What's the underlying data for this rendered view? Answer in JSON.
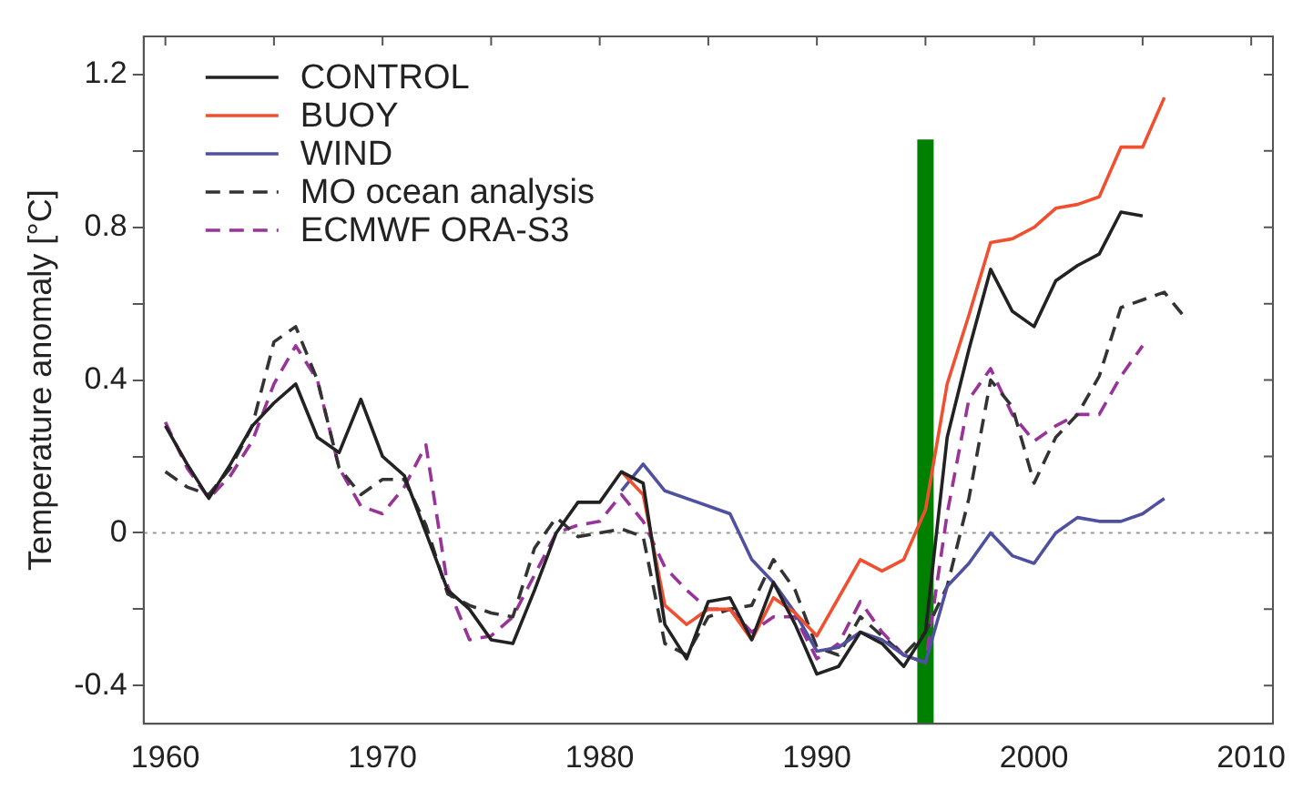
{
  "chart_data": {
    "type": "line",
    "ylabel": "Temperature anomaly [°C]",
    "xlim": [
      1959,
      2011
    ],
    "ylim": [
      -0.5,
      1.3
    ],
    "xticks": [
      1960,
      {
        "value": 1965,
        "label": null
      },
      1970,
      {
        "value": 1975,
        "label": null
      },
      1980,
      {
        "value": 1985,
        "label": null
      },
      1990,
      {
        "value": 1995,
        "label": null
      },
      2000,
      {
        "value": 2005,
        "label": null
      },
      2010
    ],
    "yticks": [
      -0.4,
      {
        "value": -0.2,
        "label": null
      },
      0,
      {
        "value": 0.2,
        "label": null
      },
      0.4,
      {
        "value": 0.6,
        "label": null
      },
      0.8,
      {
        "value": 1.0,
        "label": null
      },
      1.2
    ],
    "grid": false,
    "legend": "top left",
    "marker": "none",
    "ref_lines": [
      {
        "axis": "y",
        "value": 0,
        "color": "#999999",
        "line_style": "dotted"
      }
    ],
    "series": [
      {
        "name": "CONTROL",
        "color": "#222222",
        "line_style": "solid",
        "x": [
          1960,
          1961,
          1962,
          1963,
          1964,
          1965,
          1966,
          1967,
          1968,
          1969,
          1970,
          1971,
          1972,
          1973,
          1974,
          1975,
          1976,
          1977,
          1978,
          1979,
          1980,
          1981,
          1982,
          1983,
          1984,
          1985,
          1986,
          1987,
          1988,
          1989,
          1990,
          1991,
          1992,
          1993,
          1994,
          1995,
          1996,
          1997,
          1998,
          1999,
          2000,
          2001,
          2002,
          2003,
          2004,
          2005
        ],
        "values": [
          0.28,
          0.18,
          0.09,
          0.18,
          0.28,
          0.34,
          0.39,
          0.25,
          0.21,
          0.35,
          0.2,
          0.15,
          0.0,
          -0.15,
          -0.2,
          -0.28,
          -0.29,
          -0.15,
          0.0,
          0.08,
          0.08,
          0.16,
          0.13,
          -0.24,
          -0.33,
          -0.18,
          -0.17,
          -0.28,
          -0.13,
          -0.24,
          -0.37,
          -0.35,
          -0.26,
          -0.29,
          -0.35,
          -0.26,
          0.25,
          0.48,
          0.69,
          0.58,
          0.54,
          0.66,
          0.7,
          0.73,
          0.84,
          0.83
        ]
      },
      {
        "name": "BUOY",
        "color": "#f05030",
        "line_style": "solid",
        "x": [
          1981,
          1982,
          1983,
          1984,
          1985,
          1986,
          1987,
          1988,
          1989,
          1990,
          1991,
          1992,
          1993,
          1994,
          1995,
          1996,
          1997,
          1998,
          1999,
          2000,
          2001,
          2002,
          2003,
          2004,
          2005,
          2006
        ],
        "values": [
          0.16,
          0.1,
          -0.19,
          -0.24,
          -0.2,
          -0.2,
          -0.28,
          -0.17,
          -0.21,
          -0.27,
          -0.17,
          -0.07,
          -0.1,
          -0.07,
          0.06,
          0.39,
          0.57,
          0.76,
          0.77,
          0.8,
          0.85,
          0.86,
          0.88,
          1.01,
          1.01,
          1.14
        ]
      },
      {
        "name": "WIND",
        "color": "#5050a0",
        "line_style": "solid",
        "x": [
          1981,
          1982,
          1983,
          1986,
          1987,
          1988,
          1989,
          1990,
          1991,
          1992,
          1993,
          1994,
          1995,
          1996,
          1997,
          1998,
          1999,
          2000,
          2001,
          2002,
          2003,
          2004,
          2005,
          2006
        ],
        "values": [
          0.11,
          0.18,
          0.11,
          0.05,
          -0.07,
          -0.13,
          -0.21,
          -0.31,
          -0.3,
          -0.26,
          -0.28,
          -0.32,
          -0.34,
          -0.14,
          -0.08,
          0.0,
          -0.06,
          -0.08,
          0.0,
          0.04,
          0.03,
          0.03,
          0.05,
          0.09
        ]
      },
      {
        "name": "MO ocean analysis",
        "color": "#333333",
        "line_style": "dashed",
        "x": [
          1960,
          1961,
          1962,
          1963,
          1964,
          1965,
          1966,
          1967,
          1968,
          1969,
          1970,
          1971,
          1972,
          1973,
          1974,
          1975,
          1976,
          1977,
          1978,
          1979,
          1980,
          1981,
          1982,
          1983,
          1984,
          1985,
          1986,
          1987,
          1988,
          1989,
          1990,
          1991,
          1992,
          1993,
          1994,
          1995,
          1996,
          1997,
          1998,
          1999,
          2000,
          2001,
          2002,
          2003,
          2004,
          2005,
          2006,
          2007
        ],
        "values": [
          0.16,
          0.12,
          0.1,
          0.17,
          0.28,
          0.5,
          0.54,
          0.4,
          0.17,
          0.1,
          0.14,
          0.14,
          0.02,
          -0.16,
          -0.19,
          -0.21,
          -0.22,
          -0.04,
          0.04,
          -0.01,
          0.0,
          0.01,
          -0.01,
          -0.29,
          -0.32,
          -0.22,
          -0.2,
          -0.19,
          -0.07,
          -0.15,
          -0.3,
          -0.32,
          -0.22,
          -0.27,
          -0.32,
          -0.26,
          -0.14,
          0.09,
          0.4,
          0.33,
          0.13,
          0.25,
          0.31,
          0.41,
          0.59,
          0.61,
          0.63,
          0.56
        ]
      },
      {
        "name": "ECMWF ORA-S3",
        "color": "#993399",
        "line_style": "dashed",
        "x": [
          1960,
          1961,
          1962,
          1963,
          1964,
          1965,
          1966,
          1967,
          1968,
          1969,
          1970,
          1971,
          1972,
          1973,
          1974,
          1975,
          1976,
          1977,
          1978,
          1979,
          1980,
          1981,
          1982,
          1983,
          1984,
          1985,
          1986,
          1987,
          1988,
          1989,
          1990,
          1991,
          1992,
          1993,
          1994,
          1995,
          1996,
          1997,
          1998,
          1999,
          2000,
          2001,
          2002,
          2003,
          2004,
          2005
        ],
        "values": [
          0.29,
          0.17,
          0.09,
          0.15,
          0.24,
          0.39,
          0.49,
          0.4,
          0.17,
          0.07,
          0.05,
          0.12,
          0.23,
          -0.14,
          -0.28,
          -0.27,
          -0.22,
          -0.11,
          0.0,
          0.02,
          0.03,
          0.1,
          0.03,
          -0.09,
          -0.15,
          -0.2,
          -0.2,
          -0.26,
          -0.22,
          -0.22,
          -0.33,
          -0.29,
          -0.18,
          -0.26,
          -0.32,
          -0.34,
          0.05,
          0.35,
          0.43,
          0.31,
          0.24,
          0.28,
          0.31,
          0.31,
          0.41,
          0.49
        ]
      },
      {
        "color": "#008000",
        "line_style": "solid",
        "x": [
          1995,
          1995
        ],
        "values": [
          -0.5,
          1.03
        ]
      }
    ]
  }
}
